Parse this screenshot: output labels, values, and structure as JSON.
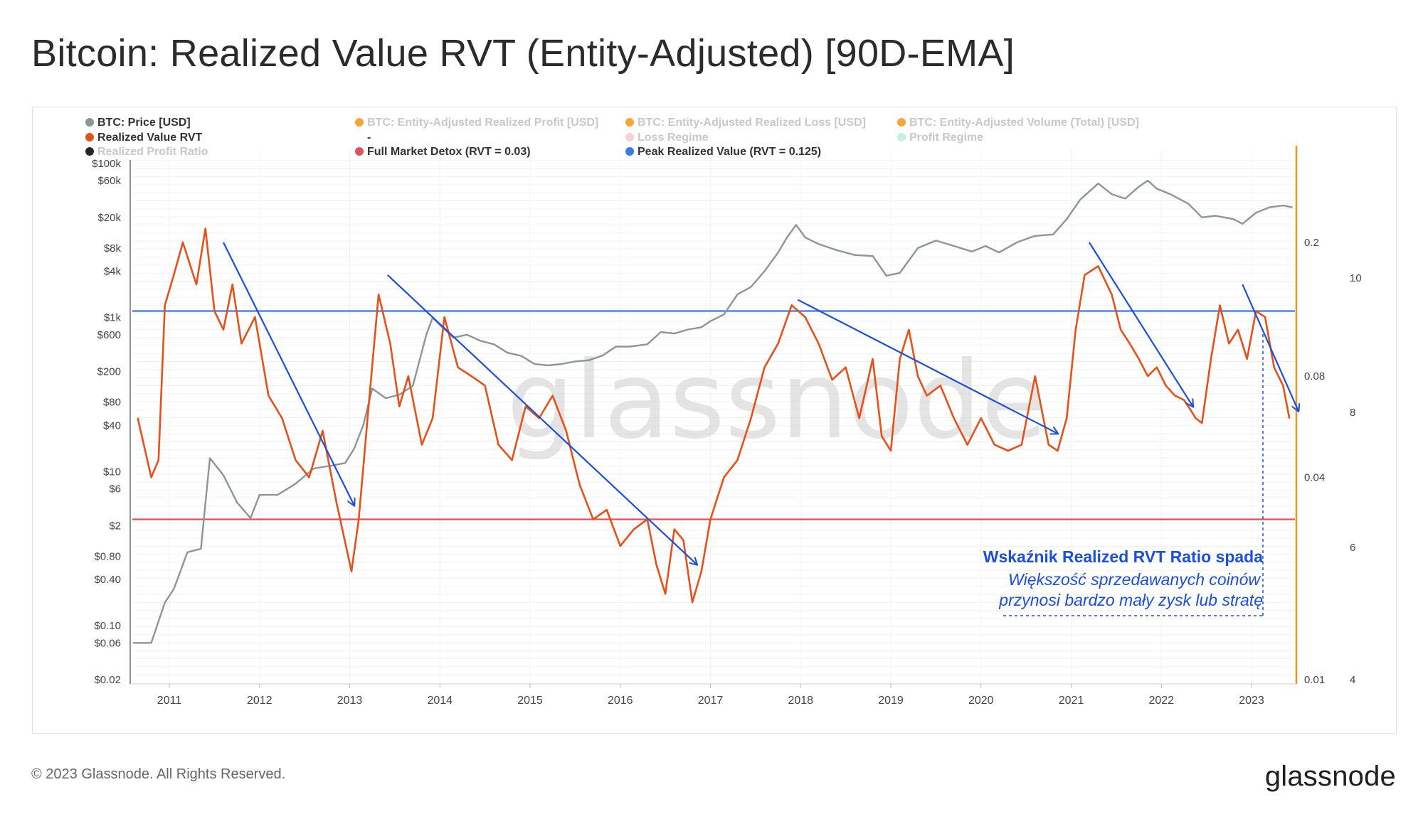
{
  "title": "Bitcoin: Realized Value RVT (Entity-Adjusted) [90D-EMA]",
  "footer": {
    "copyright": "© 2023 Glassnode. All Rights Reserved.",
    "logo": "glassnode"
  },
  "watermark": "glassnode",
  "legend": [
    {
      "label": "BTC: Price [USD]",
      "color": "#8c9696",
      "faded": false
    },
    {
      "label": "BTC: Entity-Adjusted Realized Profit [USD]",
      "color": "#f7931a",
      "faded": true
    },
    {
      "label": "BTC: Entity-Adjusted Realized Loss [USD]",
      "color": "#f7931a",
      "faded": true
    },
    {
      "label": "BTC: Entity-Adjusted Volume (Total) [USD]",
      "color": "#f7931a",
      "faded": true
    },
    {
      "label": "Realized Value RVT",
      "color": "#e8501a",
      "faded": false
    },
    {
      "label": "-",
      "color": "",
      "faded": false
    },
    {
      "label": "Loss Regime",
      "color": "#f6c9cf",
      "faded": true
    },
    {
      "label": "Profit Regime",
      "color": "#b8f0d8",
      "faded": true
    },
    {
      "label": "Realized Profit Ratio",
      "color": "#000000",
      "faded": true
    },
    {
      "label": "Full Market Detox (RVT = 0.03)",
      "color": "#e0505a",
      "faded": false
    },
    {
      "label": "Peak Realized Value (RVT = 0.125)",
      "color": "#3a7be0",
      "faded": false
    }
  ],
  "annotation": {
    "line1": "Wskaźnik Realized RVT Ratio spada",
    "line2": "Większość sprzedawanych coinów",
    "line3": "przynosi bardzo mały zysk lub stratę"
  },
  "chart_data": {
    "type": "line",
    "x_ticks": [
      "2011",
      "2012",
      "2013",
      "2014",
      "2015",
      "2016",
      "2017",
      "2018",
      "2019",
      "2020",
      "2021",
      "2022",
      "2023"
    ],
    "y_left_ticks": [
      "$100k",
      "$60k",
      "$20k",
      "$8k",
      "$4k",
      "$1k",
      "$600",
      "$200",
      "$80",
      "$40",
      "$10",
      "$6",
      "$2",
      "$0.80",
      "$0.40",
      "$0.10",
      "$0.06",
      "$0.02"
    ],
    "y_left_scale": "log",
    "y_right1_ticks": [
      "0.2",
      "0.08",
      "0.04",
      "0.01"
    ],
    "y_right1_scale": "log",
    "y_right2_ticks": [
      "10",
      "8",
      "6",
      "4"
    ],
    "reference_lines": [
      {
        "name": "Full Market Detox (RVT = 0.03)",
        "rvt": 0.03,
        "color": "#e0505a"
      },
      {
        "name": "Peak Realized Value (RVT = 0.125)",
        "rvt": 0.125,
        "color": "#3a7be0"
      }
    ],
    "series": [
      {
        "name": "BTC: Price [USD]",
        "color": "#8c9696",
        "axis": "left",
        "x": [
          2010.6,
          2010.8,
          2010.95,
          2011.05,
          2011.2,
          2011.35,
          2011.45,
          2011.6,
          2011.75,
          2011.9,
          2012.0,
          2012.2,
          2012.4,
          2012.6,
          2012.8,
          2012.95,
          2013.05,
          2013.15,
          2013.25,
          2013.4,
          2013.55,
          2013.7,
          2013.85,
          2013.92,
          2014.0,
          2014.15,
          2014.3,
          2014.45,
          2014.6,
          2014.75,
          2014.9,
          2015.05,
          2015.2,
          2015.35,
          2015.5,
          2015.65,
          2015.8,
          2015.95,
          2016.1,
          2016.3,
          2016.45,
          2016.6,
          2016.75,
          2016.9,
          2017.0,
          2017.15,
          2017.3,
          2017.45,
          2017.6,
          2017.75,
          2017.85,
          2017.95,
          2018.05,
          2018.2,
          2018.4,
          2018.6,
          2018.8,
          2018.95,
          2019.1,
          2019.3,
          2019.5,
          2019.7,
          2019.9,
          2020.05,
          2020.2,
          2020.4,
          2020.6,
          2020.8,
          2020.95,
          2021.1,
          2021.3,
          2021.45,
          2021.6,
          2021.75,
          2021.85,
          2021.95,
          2022.1,
          2022.3,
          2022.45,
          2022.6,
          2022.8,
          2022.9,
          2023.05,
          2023.2,
          2023.35,
          2023.45
        ],
        "values": [
          0.06,
          0.06,
          0.2,
          0.3,
          0.9,
          1.0,
          15,
          9,
          4,
          2.5,
          5,
          5,
          7,
          11,
          12,
          13,
          20,
          40,
          120,
          90,
          100,
          130,
          600,
          1000,
          800,
          550,
          600,
          500,
          450,
          350,
          320,
          250,
          240,
          250,
          270,
          280,
          320,
          420,
          420,
          450,
          650,
          620,
          700,
          750,
          900,
          1100,
          2000,
          2500,
          4000,
          7000,
          11000,
          16000,
          11000,
          9000,
          7500,
          6500,
          6300,
          3500,
          3800,
          8000,
          10000,
          8500,
          7200,
          8500,
          7000,
          9500,
          11500,
          12000,
          19000,
          34000,
          55000,
          40000,
          35000,
          50000,
          60000,
          47000,
          40000,
          30000,
          20000,
          21000,
          19000,
          16500,
          23000,
          27000,
          28500,
          27000
        ]
      },
      {
        "name": "Realized Value RVT",
        "color": "#e8501a",
        "axis": "right",
        "x": [
          2010.65,
          2010.8,
          2010.88,
          2010.95,
          2011.05,
          2011.15,
          2011.3,
          2011.4,
          2011.5,
          2011.6,
          2011.7,
          2011.8,
          2011.95,
          2012.1,
          2012.25,
          2012.4,
          2012.55,
          2012.7,
          2012.85,
          2013.02,
          2013.1,
          2013.22,
          2013.32,
          2013.45,
          2013.55,
          2013.65,
          2013.8,
          2013.92,
          2014.05,
          2014.2,
          2014.35,
          2014.5,
          2014.65,
          2014.8,
          2014.95,
          2015.1,
          2015.25,
          2015.4,
          2015.55,
          2015.7,
          2015.85,
          2016.0,
          2016.15,
          2016.3,
          2016.4,
          2016.5,
          2016.6,
          2016.7,
          2016.8,
          2016.9,
          2017.0,
          2017.15,
          2017.3,
          2017.45,
          2017.6,
          2017.75,
          2017.9,
          2018.05,
          2018.2,
          2018.35,
          2018.5,
          2018.65,
          2018.8,
          2018.9,
          2019.0,
          2019.1,
          2019.2,
          2019.3,
          2019.4,
          2019.55,
          2019.7,
          2019.85,
          2020.0,
          2020.15,
          2020.3,
          2020.45,
          2020.6,
          2020.75,
          2020.85,
          2020.95,
          2021.05,
          2021.15,
          2021.3,
          2021.45,
          2021.55,
          2021.65,
          2021.75,
          2021.85,
          2021.95,
          2022.05,
          2022.15,
          2022.25,
          2022.3,
          2022.38,
          2022.45,
          2022.55,
          2022.65,
          2022.75,
          2022.85,
          2022.95,
          2023.05,
          2023.15,
          2023.25,
          2023.35,
          2023.42
        ],
        "values": [
          0.06,
          0.04,
          0.045,
          0.13,
          0.16,
          0.2,
          0.15,
          0.22,
          0.125,
          0.11,
          0.15,
          0.1,
          0.12,
          0.07,
          0.06,
          0.045,
          0.04,
          0.055,
          0.034,
          0.021,
          0.03,
          0.07,
          0.14,
          0.1,
          0.065,
          0.08,
          0.05,
          0.06,
          0.12,
          0.085,
          0.08,
          0.075,
          0.05,
          0.045,
          0.065,
          0.06,
          0.07,
          0.055,
          0.038,
          0.03,
          0.032,
          0.025,
          0.028,
          0.03,
          0.022,
          0.018,
          0.028,
          0.026,
          0.017,
          0.021,
          0.03,
          0.04,
          0.045,
          0.06,
          0.085,
          0.1,
          0.13,
          0.12,
          0.1,
          0.078,
          0.085,
          0.06,
          0.09,
          0.053,
          0.048,
          0.09,
          0.11,
          0.08,
          0.07,
          0.075,
          0.06,
          0.05,
          0.06,
          0.05,
          0.048,
          0.05,
          0.08,
          0.05,
          0.048,
          0.06,
          0.11,
          0.16,
          0.17,
          0.14,
          0.11,
          0.1,
          0.09,
          0.08,
          0.085,
          0.075,
          0.07,
          0.068,
          0.065,
          0.06,
          0.058,
          0.09,
          0.13,
          0.1,
          0.11,
          0.09,
          0.125,
          0.12,
          0.085,
          0.075,
          0.06
        ]
      }
    ],
    "trend_arrows": [
      {
        "from": [
          2011.6,
          0.2
        ],
        "to": [
          2013.05,
          0.033
        ]
      },
      {
        "from": [
          2013.42,
          0.16
        ],
        "to": [
          2016.85,
          0.022
        ]
      },
      {
        "from": [
          2017.97,
          0.135
        ],
        "to": [
          2020.85,
          0.054
        ]
      },
      {
        "from": [
          2021.2,
          0.2
        ],
        "to": [
          2022.35,
          0.065
        ]
      },
      {
        "from": [
          2022.9,
          0.15
        ],
        "to": [
          2023.52,
          0.063
        ]
      }
    ]
  }
}
